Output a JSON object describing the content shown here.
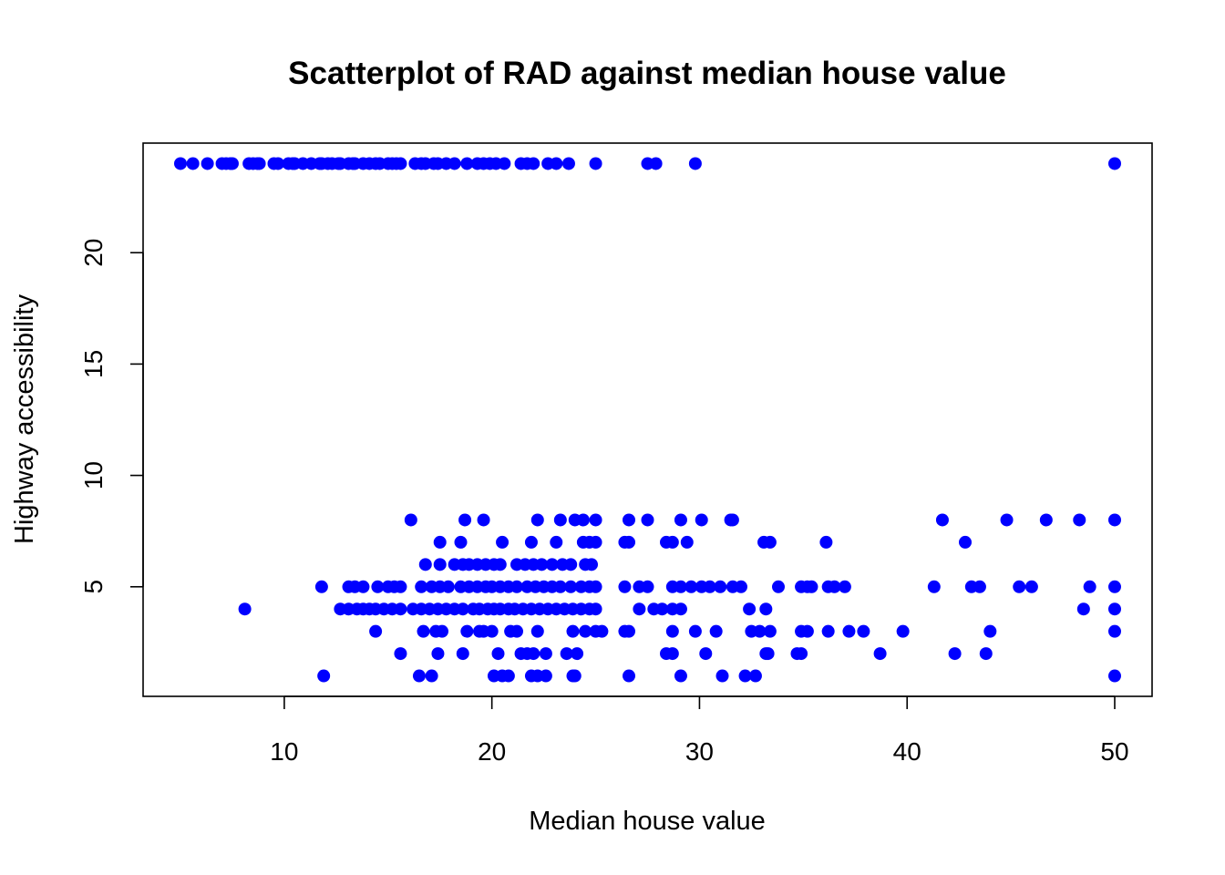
{
  "chart_data": {
    "type": "scatter",
    "title": "Scatterplot of RAD against median house value",
    "xlabel": "Median house value",
    "ylabel": "Highway accessibility",
    "xlim": [
      3.2,
      51.8
    ],
    "ylim": [
      0.08,
      24.92
    ],
    "xticks": [
      10,
      20,
      30,
      40,
      50
    ],
    "xtick_labels": [
      "10",
      "20",
      "30",
      "40",
      "50"
    ],
    "yticks": [
      5,
      10,
      15,
      20
    ],
    "ytick_labels": [
      "5",
      "10",
      "15",
      "20"
    ],
    "grid": false,
    "legend": "none",
    "point_color": "#0000ff",
    "series": [
      {
        "points": [
          [
            5.0,
            24
          ],
          [
            5.6,
            24
          ],
          [
            6.3,
            24
          ],
          [
            7.0,
            24
          ],
          [
            7.2,
            24
          ],
          [
            7.4,
            24
          ],
          [
            7.5,
            24
          ],
          [
            8.3,
            24
          ],
          [
            8.5,
            24
          ],
          [
            8.7,
            24
          ],
          [
            8.8,
            24
          ],
          [
            9.5,
            24
          ],
          [
            9.7,
            24
          ],
          [
            10.2,
            24
          ],
          [
            10.4,
            24
          ],
          [
            10.5,
            24
          ],
          [
            10.9,
            24
          ],
          [
            11.3,
            24
          ],
          [
            11.7,
            24
          ],
          [
            11.8,
            24
          ],
          [
            12.1,
            24
          ],
          [
            12.3,
            24
          ],
          [
            12.6,
            24
          ],
          [
            12.7,
            24
          ],
          [
            13.1,
            24
          ],
          [
            13.3,
            24
          ],
          [
            13.4,
            24
          ],
          [
            13.8,
            24
          ],
          [
            14.1,
            24
          ],
          [
            14.4,
            24
          ],
          [
            14.6,
            24
          ],
          [
            15.0,
            24
          ],
          [
            15.2,
            24
          ],
          [
            15.4,
            24
          ],
          [
            15.6,
            24
          ],
          [
            16.3,
            24
          ],
          [
            16.6,
            24
          ],
          [
            16.8,
            24
          ],
          [
            17.2,
            24
          ],
          [
            17.4,
            24
          ],
          [
            17.8,
            24
          ],
          [
            18.2,
            24
          ],
          [
            18.8,
            24
          ],
          [
            19.3,
            24
          ],
          [
            19.6,
            24
          ],
          [
            19.9,
            24
          ],
          [
            20.2,
            24
          ],
          [
            20.6,
            24
          ],
          [
            21.4,
            24
          ],
          [
            21.7,
            24
          ],
          [
            22.0,
            24
          ],
          [
            22.7,
            24
          ],
          [
            23.1,
            24
          ],
          [
            23.7,
            24
          ],
          [
            25.0,
            24
          ],
          [
            27.5,
            24
          ],
          [
            27.9,
            24
          ],
          [
            29.8,
            24
          ],
          [
            50.0,
            24
          ],
          [
            16.1,
            8
          ],
          [
            18.7,
            8
          ],
          [
            19.6,
            8
          ],
          [
            22.2,
            8
          ],
          [
            23.3,
            8
          ],
          [
            24.0,
            8
          ],
          [
            24.4,
            8
          ],
          [
            25.0,
            8
          ],
          [
            26.6,
            8
          ],
          [
            27.5,
            8
          ],
          [
            29.1,
            8
          ],
          [
            30.1,
            8
          ],
          [
            31.5,
            8
          ],
          [
            31.6,
            8
          ],
          [
            41.7,
            8
          ],
          [
            44.8,
            8
          ],
          [
            46.7,
            8
          ],
          [
            48.3,
            8
          ],
          [
            50.0,
            8
          ],
          [
            17.5,
            7
          ],
          [
            18.5,
            7
          ],
          [
            20.5,
            7
          ],
          [
            21.9,
            7
          ],
          [
            23.1,
            7
          ],
          [
            24.4,
            7
          ],
          [
            24.7,
            7
          ],
          [
            25.0,
            7
          ],
          [
            26.4,
            7
          ],
          [
            26.6,
            7
          ],
          [
            28.4,
            7
          ],
          [
            28.7,
            7
          ],
          [
            29.4,
            7
          ],
          [
            33.1,
            7
          ],
          [
            33.4,
            7
          ],
          [
            36.1,
            7
          ],
          [
            42.8,
            7
          ],
          [
            16.8,
            6
          ],
          [
            17.5,
            6
          ],
          [
            18.2,
            6
          ],
          [
            18.6,
            6
          ],
          [
            18.9,
            6
          ],
          [
            19.3,
            6
          ],
          [
            19.7,
            6
          ],
          [
            20.1,
            6
          ],
          [
            20.4,
            6
          ],
          [
            21.2,
            6
          ],
          [
            21.6,
            6
          ],
          [
            22.0,
            6
          ],
          [
            22.4,
            6
          ],
          [
            22.9,
            6
          ],
          [
            23.4,
            6
          ],
          [
            23.8,
            6
          ],
          [
            24.5,
            6
          ],
          [
            24.8,
            6
          ],
          [
            11.8,
            5
          ],
          [
            13.1,
            5
          ],
          [
            13.4,
            5
          ],
          [
            13.8,
            5
          ],
          [
            14.5,
            5
          ],
          [
            15.0,
            5
          ],
          [
            15.3,
            5
          ],
          [
            15.6,
            5
          ],
          [
            16.6,
            5
          ],
          [
            17.1,
            5
          ],
          [
            17.5,
            5
          ],
          [
            17.9,
            5
          ],
          [
            18.5,
            5
          ],
          [
            18.9,
            5
          ],
          [
            19.3,
            5
          ],
          [
            19.7,
            5
          ],
          [
            20.0,
            5
          ],
          [
            20.4,
            5
          ],
          [
            20.8,
            5
          ],
          [
            21.2,
            5
          ],
          [
            21.7,
            5
          ],
          [
            22.1,
            5
          ],
          [
            22.5,
            5
          ],
          [
            22.9,
            5
          ],
          [
            23.3,
            5
          ],
          [
            23.8,
            5
          ],
          [
            24.3,
            5
          ],
          [
            24.7,
            5
          ],
          [
            25.0,
            5
          ],
          [
            26.4,
            5
          ],
          [
            27.1,
            5
          ],
          [
            27.5,
            5
          ],
          [
            28.7,
            5
          ],
          [
            29.1,
            5
          ],
          [
            29.6,
            5
          ],
          [
            30.1,
            5
          ],
          [
            30.5,
            5
          ],
          [
            31.0,
            5
          ],
          [
            31.6,
            5
          ],
          [
            32.0,
            5
          ],
          [
            33.8,
            5
          ],
          [
            34.9,
            5
          ],
          [
            35.2,
            5
          ],
          [
            35.4,
            5
          ],
          [
            36.2,
            5
          ],
          [
            36.5,
            5
          ],
          [
            37.0,
            5
          ],
          [
            41.3,
            5
          ],
          [
            43.1,
            5
          ],
          [
            43.5,
            5
          ],
          [
            45.4,
            5
          ],
          [
            46.0,
            5
          ],
          [
            48.8,
            5
          ],
          [
            50.0,
            5
          ],
          [
            8.1,
            4
          ],
          [
            12.7,
            4
          ],
          [
            13.1,
            4
          ],
          [
            13.5,
            4
          ],
          [
            13.8,
            4
          ],
          [
            14.1,
            4
          ],
          [
            14.4,
            4
          ],
          [
            14.8,
            4
          ],
          [
            15.2,
            4
          ],
          [
            15.6,
            4
          ],
          [
            16.2,
            4
          ],
          [
            16.6,
            4
          ],
          [
            17.0,
            4
          ],
          [
            17.4,
            4
          ],
          [
            17.8,
            4
          ],
          [
            18.2,
            4
          ],
          [
            18.6,
            4
          ],
          [
            19.1,
            4
          ],
          [
            19.4,
            4
          ],
          [
            19.8,
            4
          ],
          [
            20.1,
            4
          ],
          [
            20.4,
            4
          ],
          [
            20.8,
            4
          ],
          [
            21.1,
            4
          ],
          [
            21.5,
            4
          ],
          [
            21.9,
            4
          ],
          [
            22.3,
            4
          ],
          [
            22.7,
            4
          ],
          [
            23.1,
            4
          ],
          [
            23.5,
            4
          ],
          [
            23.9,
            4
          ],
          [
            24.3,
            4
          ],
          [
            24.7,
            4
          ],
          [
            25.0,
            4
          ],
          [
            27.1,
            4
          ],
          [
            27.8,
            4
          ],
          [
            28.2,
            4
          ],
          [
            28.7,
            4
          ],
          [
            29.1,
            4
          ],
          [
            32.4,
            4
          ],
          [
            33.2,
            4
          ],
          [
            48.5,
            4
          ],
          [
            50.0,
            4
          ],
          [
            14.4,
            3
          ],
          [
            16.7,
            3
          ],
          [
            17.3,
            3
          ],
          [
            17.6,
            3
          ],
          [
            18.8,
            3
          ],
          [
            19.4,
            3
          ],
          [
            19.6,
            3
          ],
          [
            20.0,
            3
          ],
          [
            20.9,
            3
          ],
          [
            21.2,
            3
          ],
          [
            22.2,
            3
          ],
          [
            23.9,
            3
          ],
          [
            24.5,
            3
          ],
          [
            25.0,
            3
          ],
          [
            25.3,
            3
          ],
          [
            26.4,
            3
          ],
          [
            26.6,
            3
          ],
          [
            28.7,
            3
          ],
          [
            29.8,
            3
          ],
          [
            30.8,
            3
          ],
          [
            32.5,
            3
          ],
          [
            32.9,
            3
          ],
          [
            33.4,
            3
          ],
          [
            34.9,
            3
          ],
          [
            35.2,
            3
          ],
          [
            36.2,
            3
          ],
          [
            37.2,
            3
          ],
          [
            37.9,
            3
          ],
          [
            39.8,
            3
          ],
          [
            44.0,
            3
          ],
          [
            50.0,
            3
          ],
          [
            15.6,
            2
          ],
          [
            17.4,
            2
          ],
          [
            18.6,
            2
          ],
          [
            20.3,
            2
          ],
          [
            21.4,
            2
          ],
          [
            21.7,
            2
          ],
          [
            22.0,
            2
          ],
          [
            22.6,
            2
          ],
          [
            23.6,
            2
          ],
          [
            24.1,
            2
          ],
          [
            28.4,
            2
          ],
          [
            28.7,
            2
          ],
          [
            30.3,
            2
          ],
          [
            33.2,
            2
          ],
          [
            33.3,
            2
          ],
          [
            34.7,
            2
          ],
          [
            34.9,
            2
          ],
          [
            38.7,
            2
          ],
          [
            42.3,
            2
          ],
          [
            43.8,
            2
          ],
          [
            11.9,
            1
          ],
          [
            16.5,
            1
          ],
          [
            17.1,
            1
          ],
          [
            20.1,
            1
          ],
          [
            20.5,
            1
          ],
          [
            20.8,
            1
          ],
          [
            21.9,
            1
          ],
          [
            22.2,
            1
          ],
          [
            22.6,
            1
          ],
          [
            23.9,
            1
          ],
          [
            24.0,
            1
          ],
          [
            26.6,
            1
          ],
          [
            29.1,
            1
          ],
          [
            31.1,
            1
          ],
          [
            32.2,
            1
          ],
          [
            32.7,
            1
          ],
          [
            50.0,
            1
          ]
        ]
      }
    ]
  }
}
